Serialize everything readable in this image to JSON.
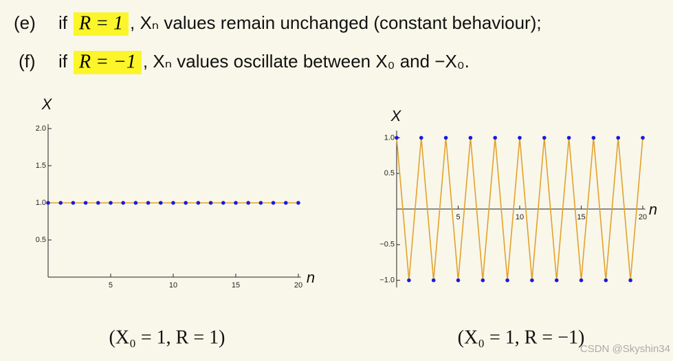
{
  "lines": [
    {
      "label": "(e)",
      "if": "if",
      "highlight": "R = 1",
      "text": ", Xₙ values remain unchanged (constant behaviour);"
    },
    {
      "label": "(f)",
      "if": "if",
      "highlight": "R = −1",
      "text": ", Xₙ values oscillate between X₀ and −X₀."
    }
  ],
  "chart_data": [
    {
      "type": "line",
      "ylabel": "X",
      "xlabel": "n",
      "caption": "(X₀ = 1, R = 1)",
      "x": [
        0,
        1,
        2,
        3,
        4,
        5,
        6,
        7,
        8,
        9,
        10,
        11,
        12,
        13,
        14,
        15,
        16,
        17,
        18,
        19,
        20
      ],
      "series": [
        {
          "color": "#e3a02c",
          "marker_color": "#1a1adc",
          "values": [
            1,
            1,
            1,
            1,
            1,
            1,
            1,
            1,
            1,
            1,
            1,
            1,
            1,
            1,
            1,
            1,
            1,
            1,
            1,
            1,
            1
          ]
        }
      ],
      "xlim": [
        0,
        20.2
      ],
      "ylim": [
        0,
        2.06
      ],
      "xticks": [
        5,
        10,
        15,
        20
      ],
      "yticks": [
        {
          "value": 0.5,
          "label": "0.5"
        },
        {
          "value": 1,
          "label": "1.0"
        },
        {
          "value": 1.5,
          "label": "1.5"
        },
        {
          "value": 2,
          "label": "2.0"
        }
      ]
    },
    {
      "type": "line",
      "ylabel": "X",
      "xlabel": "n",
      "caption": "(X₀ = 1, R = −1)",
      "x": [
        0,
        1,
        2,
        3,
        4,
        5,
        6,
        7,
        8,
        9,
        10,
        11,
        12,
        13,
        14,
        15,
        16,
        17,
        18,
        19,
        20
      ],
      "series": [
        {
          "color": "#e3a02c",
          "marker_color": "#1a1adc",
          "values": [
            1,
            -1,
            1,
            -1,
            1,
            -1,
            1,
            -1,
            1,
            -1,
            1,
            -1,
            1,
            -1,
            1,
            -1,
            1,
            -1,
            1,
            -1,
            1
          ]
        }
      ],
      "xlim": [
        0,
        20.2
      ],
      "ylim": [
        -1.1,
        1.1
      ],
      "xticks": [
        5,
        10,
        15,
        20
      ],
      "yticks": [
        {
          "value": -1,
          "label": "−1.0"
        },
        {
          "value": -0.5,
          "label": "−0.5"
        },
        {
          "value": 0.5,
          "label": "0.5"
        },
        {
          "value": 1,
          "label": "1.0"
        }
      ]
    }
  ],
  "watermark": "CSDN @Skyshin34"
}
